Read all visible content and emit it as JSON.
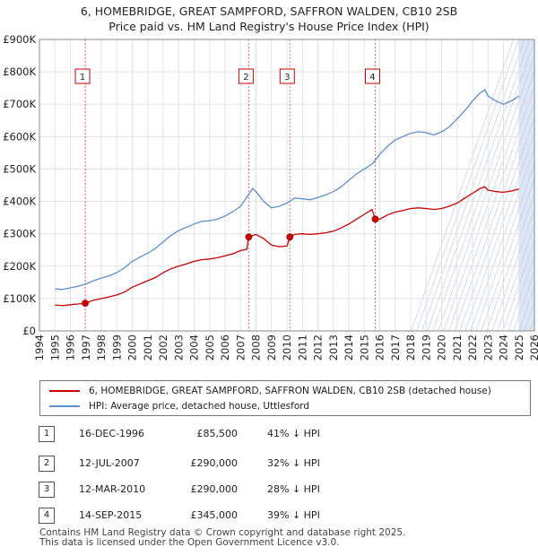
{
  "title_line1": "6, HOMEBRIDGE, GREAT SAMPFORD, SAFFRON WALDEN, CB10 2SB",
  "title_line2": "Price paid vs. HM Land Registry's House Price Index (HPI)",
  "colors": {
    "property": "#cc0000",
    "hpi": "#5b8fd0",
    "marker_line": "#ff6666",
    "future_shade": "#dce6f5"
  },
  "legend": [
    {
      "label": "6, HOMEBRIDGE, GREAT SAMPFORD, SAFFRON WALDEN, CB10 2SB (detached house)",
      "color": "#cc0000"
    },
    {
      "label": "HPI: Average price, detached house, Uttlesford",
      "color": "#5b8fd0"
    }
  ],
  "transactions": [
    {
      "num": "1",
      "date": "16-DEC-1996",
      "price": "£85,500",
      "hpi": "41% ↓ HPI"
    },
    {
      "num": "2",
      "date": "12-JUL-2007",
      "price": "£290,000",
      "hpi": "32% ↓ HPI"
    },
    {
      "num": "3",
      "date": "12-MAR-2010",
      "price": "£290,000",
      "hpi": "28% ↓ HPI"
    },
    {
      "num": "4",
      "date": "14-SEP-2015",
      "price": "£345,000",
      "hpi": "39% ↓ HPI"
    }
  ],
  "footer_line1": "Contains HM Land Registry data © Crown copyright and database right 2025.",
  "footer_line2": "This data is licensed under the Open Government Licence v3.0.",
  "chart_data": {
    "type": "line",
    "xlim": [
      1994,
      2026
    ],
    "ylim": [
      0,
      900000
    ],
    "x_ticks": [
      1994,
      1995,
      1996,
      1997,
      1998,
      1999,
      2000,
      2001,
      2002,
      2003,
      2004,
      2005,
      2006,
      2007,
      2008,
      2009,
      2010,
      2011,
      2012,
      2013,
      2014,
      2015,
      2016,
      2017,
      2018,
      2019,
      2020,
      2021,
      2022,
      2023,
      2024,
      2025,
      2026
    ],
    "y_ticks": [
      0,
      100000,
      200000,
      300000,
      400000,
      500000,
      600000,
      700000,
      800000,
      900000
    ],
    "y_tick_labels": [
      "£0",
      "£100K",
      "£200K",
      "£300K",
      "£400K",
      "£500K",
      "£600K",
      "£700K",
      "£800K",
      "£900K"
    ],
    "grid": true,
    "future_shading_from": 2025.0,
    "sales": [
      {
        "num": "1",
        "x": 1996.96,
        "y": 85500
      },
      {
        "num": "2",
        "x": 2007.53,
        "y": 290000
      },
      {
        "num": "3",
        "x": 2010.19,
        "y": 290000
      },
      {
        "num": "4",
        "x": 2015.71,
        "y": 345000
      }
    ],
    "series": [
      {
        "name": "6, HOMEBRIDGE, GREAT SAMPFORD, SAFFRON WALDEN, CB10 2SB (detached house)",
        "color": "#cc0000",
        "points": [
          [
            1995.0,
            80000
          ],
          [
            1995.5,
            78000
          ],
          [
            1996.0,
            81000
          ],
          [
            1996.5,
            83000
          ],
          [
            1996.96,
            85500
          ],
          [
            1997.5,
            95000
          ],
          [
            1998.0,
            100000
          ],
          [
            1998.5,
            105000
          ],
          [
            1999.0,
            111000
          ],
          [
            1999.5,
            120000
          ],
          [
            2000.0,
            135000
          ],
          [
            2000.5,
            145000
          ],
          [
            2001.0,
            155000
          ],
          [
            2001.5,
            165000
          ],
          [
            2002.0,
            180000
          ],
          [
            2002.5,
            192000
          ],
          [
            2003.0,
            200000
          ],
          [
            2003.5,
            207000
          ],
          [
            2004.0,
            215000
          ],
          [
            2004.5,
            220000
          ],
          [
            2005.0,
            222000
          ],
          [
            2005.5,
            226000
          ],
          [
            2006.0,
            232000
          ],
          [
            2006.5,
            238000
          ],
          [
            2007.0,
            248000
          ],
          [
            2007.4,
            252000
          ],
          [
            2007.53,
            290000
          ],
          [
            2008.0,
            298000
          ],
          [
            2008.5,
            285000
          ],
          [
            2009.0,
            265000
          ],
          [
            2009.5,
            260000
          ],
          [
            2010.0,
            262000
          ],
          [
            2010.19,
            290000
          ],
          [
            2010.5,
            298000
          ],
          [
            2011.0,
            300000
          ],
          [
            2011.5,
            298000
          ],
          [
            2012.0,
            300000
          ],
          [
            2012.5,
            303000
          ],
          [
            2013.0,
            308000
          ],
          [
            2013.5,
            318000
          ],
          [
            2014.0,
            330000
          ],
          [
            2014.5,
            345000
          ],
          [
            2015.0,
            360000
          ],
          [
            2015.5,
            375000
          ],
          [
            2015.71,
            345000
          ],
          [
            2016.0,
            345000
          ],
          [
            2016.5,
            358000
          ],
          [
            2017.0,
            367000
          ],
          [
            2017.5,
            372000
          ],
          [
            2018.0,
            378000
          ],
          [
            2018.5,
            380000
          ],
          [
            2019.0,
            378000
          ],
          [
            2019.5,
            375000
          ],
          [
            2020.0,
            378000
          ],
          [
            2020.5,
            385000
          ],
          [
            2021.0,
            395000
          ],
          [
            2021.5,
            410000
          ],
          [
            2022.0,
            425000
          ],
          [
            2022.5,
            440000
          ],
          [
            2022.8,
            445000
          ],
          [
            2023.0,
            435000
          ],
          [
            2023.5,
            430000
          ],
          [
            2024.0,
            428000
          ],
          [
            2024.5,
            432000
          ],
          [
            2025.0,
            438000
          ]
        ]
      },
      {
        "name": "HPI: Average price, detached house, Uttlesford",
        "color": "#5b8fd0",
        "points": [
          [
            1995.0,
            130000
          ],
          [
            1995.5,
            128000
          ],
          [
            1996.0,
            133000
          ],
          [
            1996.5,
            138000
          ],
          [
            1997.0,
            145000
          ],
          [
            1997.5,
            155000
          ],
          [
            1998.0,
            163000
          ],
          [
            1998.5,
            170000
          ],
          [
            1999.0,
            180000
          ],
          [
            1999.5,
            195000
          ],
          [
            2000.0,
            215000
          ],
          [
            2000.5,
            228000
          ],
          [
            2001.0,
            240000
          ],
          [
            2001.5,
            255000
          ],
          [
            2002.0,
            275000
          ],
          [
            2002.5,
            295000
          ],
          [
            2003.0,
            310000
          ],
          [
            2003.5,
            320000
          ],
          [
            2004.0,
            330000
          ],
          [
            2004.5,
            338000
          ],
          [
            2005.0,
            340000
          ],
          [
            2005.5,
            345000
          ],
          [
            2006.0,
            355000
          ],
          [
            2006.5,
            368000
          ],
          [
            2007.0,
            385000
          ],
          [
            2007.5,
            420000
          ],
          [
            2007.8,
            440000
          ],
          [
            2008.0,
            430000
          ],
          [
            2008.5,
            400000
          ],
          [
            2009.0,
            380000
          ],
          [
            2009.5,
            385000
          ],
          [
            2010.0,
            395000
          ],
          [
            2010.5,
            410000
          ],
          [
            2011.0,
            408000
          ],
          [
            2011.5,
            405000
          ],
          [
            2012.0,
            412000
          ],
          [
            2012.5,
            420000
          ],
          [
            2013.0,
            430000
          ],
          [
            2013.5,
            445000
          ],
          [
            2014.0,
            465000
          ],
          [
            2014.5,
            485000
          ],
          [
            2015.0,
            500000
          ],
          [
            2015.5,
            515000
          ],
          [
            2016.0,
            545000
          ],
          [
            2016.5,
            570000
          ],
          [
            2017.0,
            590000
          ],
          [
            2017.5,
            600000
          ],
          [
            2018.0,
            610000
          ],
          [
            2018.5,
            615000
          ],
          [
            2019.0,
            612000
          ],
          [
            2019.5,
            605000
          ],
          [
            2020.0,
            615000
          ],
          [
            2020.5,
            630000
          ],
          [
            2021.0,
            655000
          ],
          [
            2021.5,
            680000
          ],
          [
            2022.0,
            710000
          ],
          [
            2022.5,
            735000
          ],
          [
            2022.8,
            745000
          ],
          [
            2023.0,
            725000
          ],
          [
            2023.5,
            710000
          ],
          [
            2024.0,
            700000
          ],
          [
            2024.5,
            710000
          ],
          [
            2025.0,
            725000
          ]
        ]
      }
    ]
  }
}
